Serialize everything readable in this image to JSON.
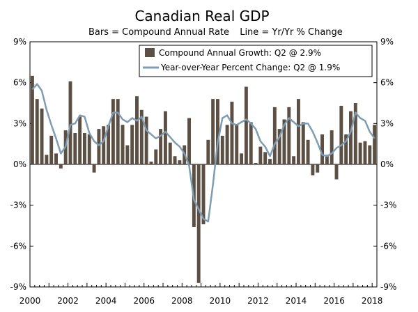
{
  "chart_data": {
    "type": "bar",
    "title": "Canadian Real GDP",
    "subtitle_left": "Bars = Compound Annual Rate",
    "subtitle_right": "Line = Yr/Yr % Change",
    "ylim": [
      -9,
      9
    ],
    "y_ticks": [
      -9,
      -6,
      -3,
      0,
      3,
      6,
      9
    ],
    "y_tick_labels_left": [
      "-9%",
      "-6%",
      "-3%",
      "0%",
      "3%",
      "6%",
      "9%"
    ],
    "y_tick_labels_right": [
      "-9%",
      "-6%",
      "-3%",
      "0%",
      "3%",
      "6%",
      "9%"
    ],
    "x_tick_labels": [
      "2000",
      "2002",
      "2004",
      "2006",
      "2008",
      "2010",
      "2012",
      "2014",
      "2016",
      "2018"
    ],
    "x_start_year": 2000,
    "quarters_per_year": 4,
    "legend_position": "top-right",
    "colors": {
      "bars": "#5c4f44",
      "line": "#7f9db2"
    },
    "series": [
      {
        "name": "Compound Annual Growth: Q2 @ 2.9%",
        "kind": "bar",
        "values": [
          6.5,
          4.8,
          4.1,
          0.7,
          2.1,
          0.8,
          -0.3,
          2.5,
          6.1,
          2.3,
          3.5,
          2.3,
          2.2,
          -0.6,
          2.6,
          2.8,
          2.9,
          4.8,
          4.8,
          2.9,
          1.4,
          2.9,
          5.0,
          4.0,
          3.5,
          0.2,
          1.1,
          2.6,
          3.9,
          1.6,
          0.6,
          0.3,
          1.4,
          3.4,
          -4.6,
          -8.7,
          -4.4,
          1.8,
          4.8,
          4.8,
          2.1,
          2.9,
          4.6,
          2.9,
          0.8,
          5.7,
          3.1,
          0.1,
          1.3,
          0.9,
          0.4,
          4.2,
          2.6,
          3.3,
          4.2,
          0.6,
          4.8,
          3.1,
          1.8,
          -0.8,
          -0.6,
          2.2,
          0.7,
          2.5,
          -1.1,
          4.3,
          2.2,
          3.9,
          4.5,
          1.6,
          1.7,
          1.4,
          2.9
        ]
      },
      {
        "name": "Year-over-Year Percent Change: Q2 @ 1.9%",
        "kind": "line",
        "values": [
          5.5,
          5.9,
          5.4,
          4.0,
          2.9,
          1.9,
          0.8,
          1.3,
          2.9,
          3.0,
          3.6,
          3.5,
          2.3,
          1.7,
          1.4,
          1.7,
          2.8,
          3.8,
          3.8,
          3.3,
          3.1,
          3.4,
          3.2,
          3.5,
          2.5,
          2.2,
          1.9,
          2.1,
          2.4,
          2.0,
          1.6,
          1.3,
          0.8,
          -0.1,
          -2.6,
          -3.3,
          -4.0,
          -4.2,
          -1.5,
          1.6,
          3.4,
          3.6,
          3.0,
          2.9,
          3.1,
          3.3,
          3.0,
          2.6,
          1.7,
          1.3,
          0.6,
          1.5,
          2.0,
          2.9,
          3.4,
          3.1,
          2.8,
          3.0,
          3.0,
          2.4,
          1.6,
          0.7,
          0.6,
          0.8,
          1.2,
          1.4,
          1.7,
          2.4,
          3.8,
          3.4,
          3.2,
          2.4,
          1.9
        ]
      }
    ]
  }
}
